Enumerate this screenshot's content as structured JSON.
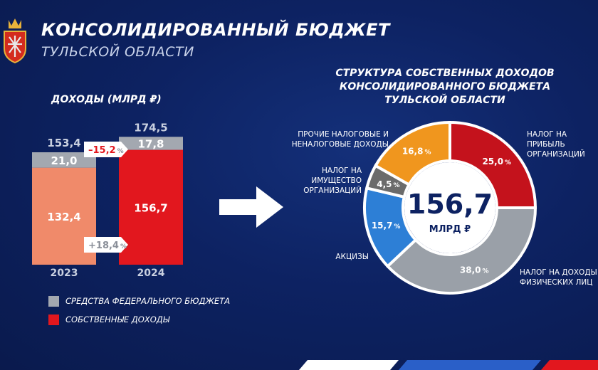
{
  "header": {
    "title": "КОНСОЛИДИРОВАННЫЙ БЮДЖЕТ",
    "subtitle": "ТУЛЬСКОЙ ОБЛАСТИ"
  },
  "colors": {
    "federal": "#a3a8b0",
    "own_2023": "#f08a6a",
    "own_2024": "#e2171e",
    "background": "#0d2262",
    "donut": [
      "#c4121c",
      "#9aa0a8",
      "#2d7fd6",
      "#6b6b6b",
      "#f0961e"
    ]
  },
  "logo": {
    "icon": "coat-of-arms-icon"
  },
  "arrow": {
    "icon": "arrow-right-icon"
  },
  "chart_data": [
    {
      "type": "bar",
      "title": "ДОХОДЫ (МЛРД ₽)",
      "categories": [
        "2023",
        "2024"
      ],
      "stacked": true,
      "series": [
        {
          "name": "СОБСТВЕННЫЕ ДОХОДЫ",
          "values": [
            132.4,
            156.7
          ],
          "labels": [
            "132,4",
            "156,7"
          ]
        },
        {
          "name": "СРЕДСТВА ФЕДЕРАЛЬНОГО БЮДЖЕТА",
          "values": [
            21.0,
            17.8
          ],
          "labels": [
            "21,0",
            "17,8"
          ]
        }
      ],
      "totals": [
        "153,4",
        "174,5"
      ],
      "changes": {
        "federal": "–15,2",
        "own": "+18,4",
        "unit": "%"
      },
      "legend": [
        "СРЕДСТВА ФЕДЕРАЛЬНОГО БЮДЖЕТА",
        "СОБСТВЕННЫЕ ДОХОДЫ"
      ],
      "legend_position": "bottom-left"
    },
    {
      "type": "pie",
      "donut": true,
      "title": "СТРУКТУРА СОБСТВЕННЫХ ДОХОДОВ КОНСОЛИДИРОВАННОГО БЮДЖЕТА ТУЛЬСКОЙ ОБЛАСТИ",
      "title_lines": [
        "СТРУКТУРА СОБСТВЕННЫХ ДОХОДОВ",
        "КОНСОЛИДИРОВАННОГО БЮДЖЕТА",
        "ТУЛЬСКОЙ ОБЛАСТИ"
      ],
      "center_value": "156,7",
      "center_unit": "МЛРД ₽",
      "slices": [
        {
          "name_lines": [
            "НАЛОГ НА",
            "ПРИБЫЛЬ",
            "ОРГАНИЗАЦИЙ"
          ],
          "value": 25.0,
          "label": "25,0"
        },
        {
          "name_lines": [
            "НАЛОГ НА ДОХОДЫ",
            "ФИЗИЧЕСКИХ ЛИЦ"
          ],
          "value": 38.0,
          "label": "38,0"
        },
        {
          "name_lines": [
            "АКЦИЗЫ"
          ],
          "value": 15.7,
          "label": "15,7"
        },
        {
          "name_lines": [
            "НАЛОГ НА",
            "ИМУЩЕСТВО",
            "ОРГАНИЗАЦИЙ"
          ],
          "value": 4.5,
          "label": "4,5"
        },
        {
          "name_lines": [
            "ПРОЧИЕ НАЛОГОВЫЕ И",
            "НЕНАЛОГОВЫЕ ДОХОДЫ"
          ],
          "value": 16.8,
          "label": "16,8"
        }
      ],
      "pct_symbol": "%"
    }
  ]
}
